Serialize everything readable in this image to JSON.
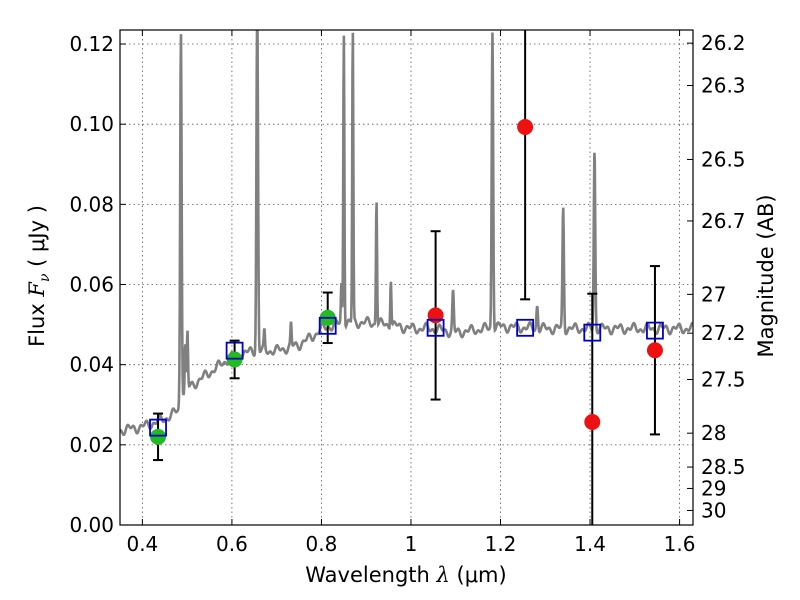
{
  "chart_data": {
    "type": "scatter",
    "xlabel": {
      "prefix": "Wavelength  ",
      "symbol": "λ",
      "unit": " (μm)"
    },
    "ylabel": {
      "prefix": "Flux  ",
      "symbol": "F",
      "subscript": "ν",
      "unit": "  ( μJy )"
    },
    "y2label": "Magnitude (AB)",
    "xlim": [
      0.35,
      1.63
    ],
    "ylim": [
      0.0,
      0.1235
    ],
    "xticks": [
      {
        "v": 0.4,
        "label": "0.4"
      },
      {
        "v": 0.6,
        "label": "0.6"
      },
      {
        "v": 0.8,
        "label": "0.8"
      },
      {
        "v": 1.0,
        "label": "1"
      },
      {
        "v": 1.2,
        "label": "1.2"
      },
      {
        "v": 1.4,
        "label": "1.4"
      },
      {
        "v": 1.6,
        "label": "1.6"
      }
    ],
    "yticks": [
      {
        "v": 0.0,
        "label": "0.00"
      },
      {
        "v": 0.02,
        "label": "0.02"
      },
      {
        "v": 0.04,
        "label": "0.04"
      },
      {
        "v": 0.06,
        "label": "0.06"
      },
      {
        "v": 0.08,
        "label": "0.08"
      },
      {
        "v": 0.1,
        "label": "0.10"
      },
      {
        "v": 0.12,
        "label": "0.12"
      }
    ],
    "y2ticks": [
      "26.2",
      "26.3",
      "26.5",
      "26.7",
      "27",
      "27.2",
      "27.5",
      "28",
      "28.5",
      "29",
      "30"
    ],
    "grid": true,
    "model_spectrum": {
      "color": "#808080",
      "continuum": [
        [
          0.35,
          0.0236
        ],
        [
          0.4,
          0.0245
        ],
        [
          0.45,
          0.0265
        ],
        [
          0.48,
          0.0285
        ],
        [
          0.49,
          0.033
        ],
        [
          0.5,
          0.034
        ],
        [
          0.55,
          0.038
        ],
        [
          0.6,
          0.042
        ],
        [
          0.65,
          0.0435
        ],
        [
          0.7,
          0.0435
        ],
        [
          0.75,
          0.045
        ],
        [
          0.78,
          0.047
        ],
        [
          0.8,
          0.049
        ],
        [
          0.85,
          0.0505
        ],
        [
          0.9,
          0.0505
        ],
        [
          0.95,
          0.05
        ],
        [
          1.0,
          0.049
        ],
        [
          1.05,
          0.049
        ],
        [
          1.1,
          0.048
        ],
        [
          1.2,
          0.0495
        ],
        [
          1.3,
          0.049
        ],
        [
          1.4,
          0.049
        ],
        [
          1.5,
          0.049
        ],
        [
          1.63,
          0.049
        ]
      ],
      "lines": [
        [
          0.4861,
          0.1235,
          0.004
        ],
        [
          0.4959,
          0.045,
          0.003
        ],
        [
          0.5007,
          0.048,
          0.003
        ],
        [
          0.6563,
          0.1235,
          0.004
        ],
        [
          0.6583,
          0.06,
          0.003
        ],
        [
          0.6725,
          0.048,
          0.003
        ],
        [
          0.732,
          0.05,
          0.003
        ],
        [
          0.8446,
          0.06,
          0.003
        ],
        [
          0.85,
          0.1235,
          0.003
        ],
        [
          0.87,
          0.1235,
          0.003
        ],
        [
          0.923,
          0.082,
          0.003
        ],
        [
          0.955,
          0.062,
          0.003
        ],
        [
          1.094,
          0.058,
          0.004
        ],
        [
          1.182,
          0.1235,
          0.004
        ],
        [
          1.282,
          0.055,
          0.004
        ],
        [
          1.34,
          0.079,
          0.004
        ],
        [
          1.41,
          0.094,
          0.004
        ]
      ]
    },
    "model_photometry": {
      "color": "#0000cc",
      "x": [
        0.435,
        0.606,
        0.814,
        1.055,
        1.255,
        1.405,
        1.545
      ],
      "y": [
        0.0243,
        0.0435,
        0.0497,
        0.0492,
        0.0492,
        0.048,
        0.0485
      ]
    },
    "series": [
      {
        "name": "",
        "color": "#22bb22",
        "x": [
          0.435,
          0.606,
          0.814
        ],
        "y": [
          0.022,
          0.0413,
          0.0517
        ],
        "yerr": [
          0.0058,
          0.0047,
          0.0063
        ]
      },
      {
        "name": "",
        "color": "#ee1111",
        "x": [
          1.055,
          1.255,
          1.405,
          1.545
        ],
        "y": [
          0.0523,
          0.0993,
          0.0257,
          0.0436
        ],
        "yerr": [
          0.021,
          0.043,
          0.032,
          0.021
        ]
      }
    ]
  }
}
